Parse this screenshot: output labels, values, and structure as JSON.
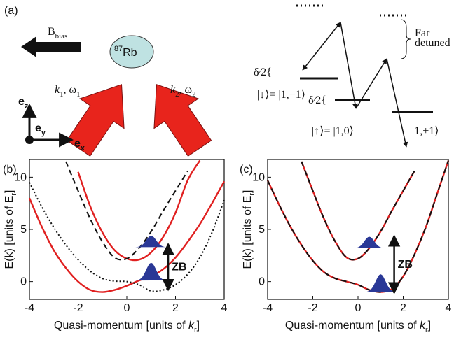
{
  "panel_a": {
    "label": "(a)",
    "bias": {
      "text": "B",
      "sub": "bias"
    },
    "atom": {
      "sup": "87",
      "text": "Rb"
    },
    "beam1": {
      "k": "k",
      "k_sub": "1",
      "sep": ", ω",
      "w_sub": "1"
    },
    "beam2": {
      "k": "k",
      "k_sub": "2",
      "sep": ", ω",
      "w_sub": "2"
    },
    "axes": {
      "ez": {
        "text": "e",
        "sub": "z"
      },
      "ey": {
        "text": "e",
        "sub": "y"
      },
      "ex": {
        "text": "e",
        "sub": "x"
      }
    },
    "levels": {
      "down": {
        "ket": "|↓⟩",
        "rhs": "= |1,−1⟩"
      },
      "up": {
        "ket": "|↑⟩",
        "rhs": "= |1,0⟩"
      },
      "plus": "|1,+1⟩"
    },
    "delta_labels": [
      "δ⁄2{",
      "δ⁄2{"
    ],
    "far_detuned": [
      "Far",
      "detuned"
    ]
  },
  "chart_data": [
    {
      "type": "line",
      "panel_label": "(b)",
      "x": [
        -4,
        -3.5,
        -3,
        -2.5,
        -2,
        -1.5,
        -1,
        -0.5,
        0,
        0.5,
        1,
        1.5,
        2,
        2.5,
        3,
        3.5,
        4
      ],
      "series": [
        {
          "color": "#e02020",
          "dash": "solid",
          "values": [
            8,
            5.3,
            3,
            1.3,
            0,
            -0.8,
            -1,
            -0.8,
            -0.4,
            0.1,
            0.5,
            1.2,
            2.3,
            3.8,
            5.5,
            7.5,
            9.6
          ]
        },
        {
          "color": "#e02020",
          "dash": "solid",
          "values": [
            null,
            null,
            null,
            null,
            10.5,
            7.2,
            4.7,
            3.0,
            2.2,
            2.1,
            2.8,
            4.3,
            6.6,
            9.7,
            11.6,
            null,
            null
          ]
        },
        {
          "color": "#111111",
          "dash": "dashed",
          "values": [
            null,
            null,
            null,
            11.5,
            8.7,
            6.0,
            3.8,
            2.3,
            2.2,
            3.2,
            4.8,
            6.8,
            8.7,
            10.6,
            null,
            null,
            null
          ]
        },
        {
          "color": "#111111",
          "dash": "dotted",
          "values": [
            9.5,
            7.2,
            5.2,
            3.5,
            2.1,
            1.0,
            0.3,
            0.05,
            0,
            -0.3,
            -0.9,
            -0.8,
            -0.3,
            0.7,
            2.3,
            4.7,
            7.8
          ]
        }
      ],
      "xlim": [
        -4,
        4
      ],
      "ylim": [
        -1.7,
        11.7
      ],
      "xticks": [
        -4,
        -2,
        0,
        2,
        4
      ],
      "yticks": [
        0,
        5,
        10
      ],
      "x_label": {
        "text": "Quasi-momentum [units of ",
        "var": "k",
        "sub": "r",
        "end": "]"
      },
      "y_label": {
        "text": "E(k) [units of E",
        "sub": "r",
        "end": "]"
      },
      "packets": [
        {
          "x": 1,
          "y": 3.3,
          "height": 1.1
        },
        {
          "x": 1,
          "y": 0.1,
          "height": 1.7
        }
      ],
      "zb": {
        "text": "ZB",
        "x": 1.7,
        "y1": 3.6,
        "y2": -0.8
      }
    },
    {
      "type": "line",
      "panel_label": "(c)",
      "x": [
        -4,
        -3.5,
        -3,
        -2.5,
        -2,
        -1.5,
        -1,
        -0.5,
        0,
        0.5,
        1,
        1.5,
        2,
        2.5,
        3,
        3.5,
        4
      ],
      "series": [
        {
          "color": "#e02020",
          "dash": "solid",
          "values": [
            9.7,
            7.4,
            5.3,
            3.5,
            2.0,
            0.9,
            0.3,
            0.0,
            -0.3,
            -0.8,
            -1.0,
            -0.7,
            0.5,
            2.6,
            5.2,
            8.4,
            11.6
          ]
        },
        {
          "color": "#e02020",
          "dash": "solid",
          "values": [
            null,
            null,
            null,
            11.5,
            8.7,
            6.0,
            3.8,
            2.3,
            2.2,
            3.2,
            4.8,
            6.8,
            8.7,
            10.6,
            null,
            null,
            null
          ]
        },
        {
          "color": "#111111",
          "dash": "dashed",
          "values": [
            9.7,
            7.4,
            5.3,
            3.5,
            2.0,
            0.9,
            0.3,
            0.0,
            -0.3,
            -0.8,
            -1.0,
            -0.7,
            0.5,
            2.6,
            5.2,
            8.4,
            11.6
          ]
        },
        {
          "color": "#111111",
          "dash": "dashed",
          "values": [
            null,
            null,
            null,
            11.5,
            8.7,
            6.0,
            3.8,
            2.3,
            2.2,
            3.2,
            4.8,
            6.8,
            8.7,
            10.6,
            null,
            null,
            null
          ]
        }
      ],
      "xlim": [
        -4,
        4
      ],
      "ylim": [
        -1.7,
        11.7
      ],
      "xticks": [
        -4,
        -2,
        0,
        2,
        4
      ],
      "yticks": [
        0,
        5,
        10
      ],
      "x_label": {
        "text": "Quasi-momentum [units of ",
        "var": "k",
        "sub": "r",
        "end": "]"
      },
      "y_label": {
        "text": "E(k) [units of E",
        "sub": "r",
        "end": "]"
      },
      "packets": [
        {
          "x": 0.5,
          "y": 3.2,
          "height": 1.1
        },
        {
          "x": 1,
          "y": -1.0,
          "height": 1.7
        }
      ],
      "zb": {
        "text": "ZB",
        "x": 1.6,
        "y1": 4.4,
        "y2": -1.1
      }
    }
  ]
}
